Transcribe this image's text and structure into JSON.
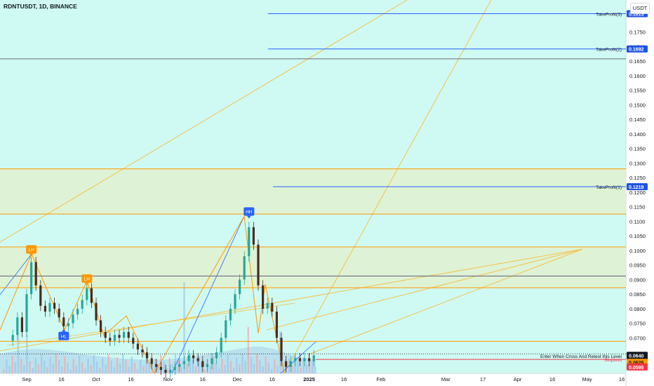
{
  "header": {
    "symbol_title": "RDNTUSDT, 1D, BINANCE",
    "currency": "USDT"
  },
  "colors": {
    "plot_bg": "#cffaf3",
    "zone_fill": "#dff2d1",
    "orange_line": "#ff9800",
    "trend_line": "#f5c04a",
    "blue_line": "#2962ff",
    "candle_up": "#26a69a",
    "candle_down": "#ef5350",
    "candle_dark": "#4a2c1f",
    "stop_red": "#f23645",
    "hh_blue": "#2962ff",
    "lh_orange": "#ff9800"
  },
  "chart_data": {
    "type": "candlestick",
    "title": "RDNTUSDT, 1D, BINANCE",
    "y_axis": {
      "ticks": [
        0.07,
        0.075,
        0.08,
        0.085,
        0.09,
        0.095,
        0.1,
        0.105,
        0.11,
        0.115,
        0.12,
        0.125,
        0.13,
        0.135,
        0.14,
        0.145,
        0.15,
        0.155,
        0.16,
        0.165,
        0.17,
        0.175
      ],
      "tick_labels": [
        "0.0700",
        "0.0750",
        "0.0800",
        "0.0850",
        "0.0900",
        "0.0950",
        "0.1000",
        "0.1050",
        "0.1100",
        "0.1150",
        "0.1200",
        "0.1250",
        "0.1300",
        "0.1350",
        "0.1400",
        "0.1450",
        "0.1500",
        "0.1550",
        "0.1600",
        "0.1650",
        "0.1700",
        "0.1750"
      ],
      "range": [
        0.0578,
        0.186
      ]
    },
    "x_axis": {
      "ticks": [
        {
          "date": "2024-09-01",
          "label": "Sep"
        },
        {
          "date": "2024-09-16",
          "label": "16"
        },
        {
          "date": "2024-10-01",
          "label": "Oct"
        },
        {
          "date": "2024-10-16",
          "label": "16"
        },
        {
          "date": "2024-11-01",
          "label": "Nov"
        },
        {
          "date": "2024-11-16",
          "label": "16"
        },
        {
          "date": "2024-12-01",
          "label": "Dec"
        },
        {
          "date": "2024-12-16",
          "label": "16"
        },
        {
          "date": "2025-01-01",
          "label": "2025"
        },
        {
          "date": "2025-01-16",
          "label": "16"
        },
        {
          "date": "2025-02-01",
          "label": "Feb"
        },
        {
          "date": "2025-03-01",
          "label": "Mar"
        },
        {
          "date": "2025-03-17",
          "label": "17"
        },
        {
          "date": "2025-04-01",
          "label": "Apr"
        },
        {
          "date": "2025-04-16",
          "label": "16"
        },
        {
          "date": "2025-05-01",
          "label": "May"
        },
        {
          "date": "2025-05-16",
          "label": "16"
        }
      ]
    },
    "close_series": [
      {
        "date": "2024-08-26",
        "close": 0.071
      },
      {
        "date": "2024-08-28",
        "close": 0.077
      },
      {
        "date": "2024-08-30",
        "close": 0.072
      },
      {
        "date": "2024-09-01",
        "close": 0.085
      },
      {
        "date": "2024-09-03",
        "close": 0.096
      },
      {
        "date": "2024-09-05",
        "close": 0.088
      },
      {
        "date": "2024-09-07",
        "close": 0.081
      },
      {
        "date": "2024-09-09",
        "close": 0.079
      },
      {
        "date": "2024-09-11",
        "close": 0.082
      },
      {
        "date": "2024-09-13",
        "close": 0.08
      },
      {
        "date": "2024-09-15",
        "close": 0.077
      },
      {
        "date": "2024-09-17",
        "close": 0.074
      },
      {
        "date": "2024-09-19",
        "close": 0.075
      },
      {
        "date": "2024-09-21",
        "close": 0.078
      },
      {
        "date": "2024-09-23",
        "close": 0.08
      },
      {
        "date": "2024-09-25",
        "close": 0.083
      },
      {
        "date": "2024-09-27",
        "close": 0.087
      },
      {
        "date": "2024-09-29",
        "close": 0.082
      },
      {
        "date": "2024-10-01",
        "close": 0.076
      },
      {
        "date": "2024-10-03",
        "close": 0.072
      },
      {
        "date": "2024-10-05",
        "close": 0.07
      },
      {
        "date": "2024-10-07",
        "close": 0.069
      },
      {
        "date": "2024-10-09",
        "close": 0.071
      },
      {
        "date": "2024-10-11",
        "close": 0.07
      },
      {
        "date": "2024-10-13",
        "close": 0.072
      },
      {
        "date": "2024-10-15",
        "close": 0.07
      },
      {
        "date": "2024-10-17",
        "close": 0.068
      },
      {
        "date": "2024-10-19",
        "close": 0.066
      },
      {
        "date": "2024-10-21",
        "close": 0.065
      },
      {
        "date": "2024-10-23",
        "close": 0.063
      },
      {
        "date": "2024-10-25",
        "close": 0.061
      },
      {
        "date": "2024-10-27",
        "close": 0.06
      },
      {
        "date": "2024-10-29",
        "close": 0.059
      },
      {
        "date": "2024-10-31",
        "close": 0.058
      },
      {
        "date": "2024-11-02",
        "close": 0.059
      },
      {
        "date": "2024-11-04",
        "close": 0.06
      },
      {
        "date": "2024-11-06",
        "close": 0.061
      },
      {
        "date": "2024-11-08",
        "close": 0.062
      },
      {
        "date": "2024-11-10",
        "close": 0.064
      },
      {
        "date": "2024-11-12",
        "close": 0.063
      },
      {
        "date": "2024-11-14",
        "close": 0.062
      },
      {
        "date": "2024-11-16",
        "close": 0.06
      },
      {
        "date": "2024-11-18",
        "close": 0.061
      },
      {
        "date": "2024-11-20",
        "close": 0.063
      },
      {
        "date": "2024-11-22",
        "close": 0.065
      },
      {
        "date": "2024-11-24",
        "close": 0.07
      },
      {
        "date": "2024-11-26",
        "close": 0.076
      },
      {
        "date": "2024-11-28",
        "close": 0.08
      },
      {
        "date": "2024-11-30",
        "close": 0.085
      },
      {
        "date": "2024-12-02",
        "close": 0.09
      },
      {
        "date": "2024-12-04",
        "close": 0.098
      },
      {
        "date": "2024-12-06",
        "close": 0.108
      },
      {
        "date": "2024-12-08",
        "close": 0.102
      },
      {
        "date": "2024-12-10",
        "close": 0.088
      },
      {
        "date": "2024-12-12",
        "close": 0.08
      },
      {
        "date": "2024-12-14",
        "close": 0.082
      },
      {
        "date": "2024-12-16",
        "close": 0.079
      },
      {
        "date": "2024-12-18",
        "close": 0.07
      },
      {
        "date": "2024-12-20",
        "close": 0.062
      },
      {
        "date": "2024-12-22",
        "close": 0.06
      },
      {
        "date": "2024-12-24",
        "close": 0.062
      },
      {
        "date": "2024-12-26",
        "close": 0.063
      },
      {
        "date": "2024-12-28",
        "close": 0.062
      },
      {
        "date": "2024-12-30",
        "close": 0.063
      },
      {
        "date": "2025-01-01",
        "close": 0.062
      },
      {
        "date": "2025-01-03",
        "close": 0.064
      }
    ],
    "horizontal_levels": [
      {
        "name": "zone_top_1",
        "price": 0.128,
        "color": "#ff9800"
      },
      {
        "name": "zone_bottom_1",
        "price": 0.1125,
        "color": "#ff9800"
      },
      {
        "name": "zone_top_2",
        "price": 0.1012,
        "color": "#ff9800"
      },
      {
        "name": "zone_bottom_2",
        "price": 0.0872,
        "color": "#ff9800"
      },
      {
        "name": "mid_grey",
        "price": 0.0912,
        "color": "#787b86"
      },
      {
        "name": "top_grey",
        "price": 0.1658,
        "color": "#787b86"
      },
      {
        "name": "entry_orange",
        "price": 0.0688,
        "color": "#ff9800"
      }
    ],
    "target_levels": [
      {
        "label": "TakeProfit(3)",
        "price": 0.1813,
        "price_label": "0.1813"
      },
      {
        "label": "TakeProfit(2)",
        "price": 0.1692,
        "price_label": "0.1692"
      },
      {
        "label": "TakeProfit(1)",
        "price": 0.1219,
        "price_label": "0.1219"
      }
    ],
    "entry": {
      "label": "Enter When Cross And Retest this Level",
      "price": 0.0645
    },
    "stoploss": {
      "label": "Stoploss",
      "price": 0.0626,
      "price_label": "0.0626"
    },
    "current": {
      "price": 0.064,
      "price_label": "0.0640",
      "countdown": "19:03:07"
    },
    "low_marker": {
      "price_label": "0.0595"
    },
    "pivot_labels": [
      {
        "label": "LH",
        "date": "2024-09-03",
        "price": 0.097,
        "color": "#ff9800",
        "position": "above"
      },
      {
        "label": "LH",
        "date": "2024-09-27",
        "price": 0.087,
        "color": "#ff9800",
        "position": "above"
      },
      {
        "label": "HL",
        "date": "2024-09-17",
        "price": 0.074,
        "color": "#2962ff",
        "position": "below"
      },
      {
        "label": "HH",
        "date": "2024-12-06",
        "price": 0.11,
        "color": "#2962ff",
        "position": "above"
      }
    ]
  }
}
